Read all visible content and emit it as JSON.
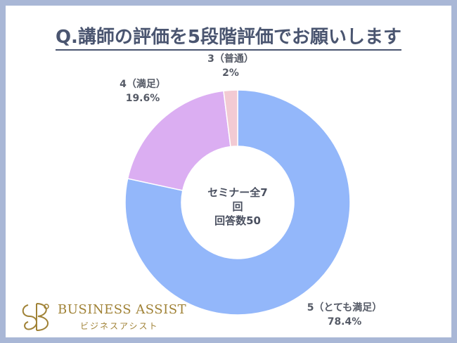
{
  "title": "Q.講師の評価を5段階評価でお願いします",
  "center_label": {
    "line1": "セミナー全7回",
    "line2": "回答数50"
  },
  "chart_data": {
    "type": "pie",
    "title": "Q.講師の評価を5段階評価でお願いします",
    "categories": [
      "5（とても満足）",
      "4（満足）",
      "3（普通）"
    ],
    "values": [
      78.4,
      19.6,
      2
    ],
    "value_labels": [
      "78.4%",
      "19.6%",
      "2%"
    ],
    "colors": [
      "#93b7fa",
      "#dbaef2",
      "#f2cad3"
    ],
    "donut": true
  },
  "logo": {
    "main": "BUSINESS ASSIST",
    "sub": "ビジネスアシスト",
    "monogram": "BA",
    "color": "#a08236"
  }
}
